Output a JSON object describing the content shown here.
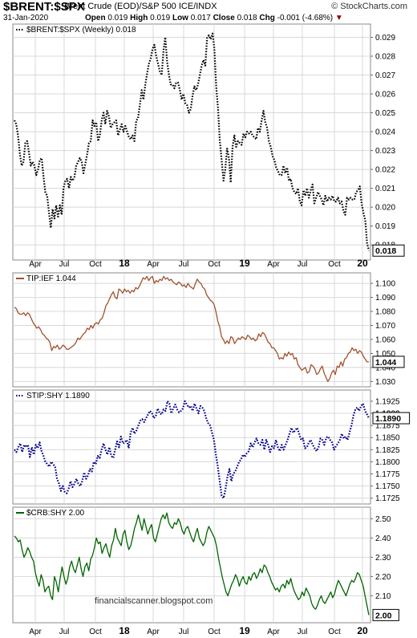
{
  "header": {
    "symbol": "$BRENT:$SPX",
    "description": "Brent Crude (EOD)/S&P 500  ICE/INDX",
    "date": "31-Jan-2020",
    "open_label": "Open",
    "open": "0.019",
    "high_label": "High",
    "high": "0.019",
    "low_label": "Low",
    "low": "0.017",
    "close_label": "Close",
    "close": "0.018",
    "chg_label": "Chg",
    "chg": "-0.001 (-4.68%)",
    "brand": "© StockCharts.com",
    "chg_color": "#8b0000"
  },
  "watermark": "financialscanner.blogspot.com",
  "x_axis": {
    "tick_labels": [
      "Apr",
      "Jul",
      "Oct",
      "18",
      "Apr",
      "Jul",
      "Oct",
      "19",
      "Apr",
      "Jul",
      "Oct",
      "20"
    ],
    "bold_labels": [
      "18",
      "19",
      "20"
    ]
  },
  "chart_data": [
    {
      "type": "line",
      "legend": "$BRENT:$SPX (Weekly) 0.018",
      "style": "dotted",
      "color": "#000000",
      "ylim": [
        0.0172,
        0.0297
      ],
      "yticks": [
        0.018,
        0.019,
        0.02,
        0.021,
        0.022,
        0.023,
        0.024,
        0.025,
        0.026,
        0.027,
        0.028,
        0.029
      ],
      "ytick_labels": [
        "0.018",
        "0.019",
        "0.020",
        "0.021",
        "0.022",
        "0.023",
        "0.024",
        "0.025",
        "0.026",
        "0.027",
        "0.028",
        "0.029"
      ],
      "last_value_label": "0.018",
      "values": [
        0.0246,
        0.0244,
        0.0238,
        0.0228,
        0.0222,
        0.0224,
        0.0234,
        0.0235,
        0.0229,
        0.0222,
        0.0224,
        0.0222,
        0.0217,
        0.022,
        0.0225,
        0.0226,
        0.0216,
        0.0208,
        0.0206,
        0.0197,
        0.0189,
        0.0199,
        0.0194,
        0.0201,
        0.0195,
        0.0201,
        0.0196,
        0.021,
        0.0214,
        0.0215,
        0.021,
        0.0216,
        0.0214,
        0.0216,
        0.0222,
        0.0224,
        0.0226,
        0.0224,
        0.0218,
        0.0223,
        0.0228,
        0.0234,
        0.0235,
        0.0246,
        0.0243,
        0.0245,
        0.0235,
        0.0238,
        0.0246,
        0.025,
        0.0244,
        0.0251,
        0.0248,
        0.0242,
        0.0244,
        0.0245,
        0.0246,
        0.0238,
        0.0241,
        0.0244,
        0.024,
        0.0243,
        0.024,
        0.0237,
        0.0236,
        0.0238,
        0.0235,
        0.0246,
        0.0247,
        0.0254,
        0.0262,
        0.0257,
        0.0265,
        0.0271,
        0.0276,
        0.0279,
        0.0284,
        0.0286,
        0.028,
        0.0276,
        0.0272,
        0.027,
        0.0283,
        0.029,
        0.0277,
        0.027,
        0.0265,
        0.0265,
        0.0263,
        0.0266,
        0.0266,
        0.0262,
        0.0257,
        0.026,
        0.0255,
        0.0254,
        0.025,
        0.0252,
        0.0259,
        0.0264,
        0.0262,
        0.0265,
        0.027,
        0.0275,
        0.0278,
        0.0275,
        0.029,
        0.0291,
        0.0289,
        0.0292,
        0.0284,
        0.0264,
        0.0252,
        0.0235,
        0.0225,
        0.0214,
        0.022,
        0.0231,
        0.0226,
        0.0213,
        0.0232,
        0.0238,
        0.0232,
        0.0235,
        0.0234,
        0.0233,
        0.0239,
        0.0237,
        0.024,
        0.0239,
        0.024,
        0.0238,
        0.0237,
        0.0236,
        0.0242,
        0.024,
        0.0246,
        0.0251,
        0.0245,
        0.0242,
        0.0235,
        0.0232,
        0.0227,
        0.0225,
        0.0221,
        0.0219,
        0.0217,
        0.0217,
        0.0222,
        0.0218,
        0.0221,
        0.0214,
        0.0215,
        0.021,
        0.0208,
        0.0207,
        0.021,
        0.0203,
        0.0201,
        0.0209,
        0.0206,
        0.021,
        0.0205,
        0.0209,
        0.0212,
        0.0202,
        0.0205,
        0.0208,
        0.0206,
        0.0204,
        0.0201,
        0.0206,
        0.0203,
        0.0205,
        0.0204,
        0.0206,
        0.0203,
        0.0203,
        0.0205,
        0.0202,
        0.0203,
        0.0198,
        0.0196,
        0.0205,
        0.0204,
        0.0205,
        0.0204,
        0.0204,
        0.0208,
        0.0209,
        0.0211,
        0.0202,
        0.0197,
        0.0193,
        0.0181,
        0.0177
      ],
      "x_positions": "weekly, Jan 2017 to Jan 2020"
    },
    {
      "type": "line",
      "legend": "TIP:IEF 1.044",
      "style": "solid",
      "color": "#a0522d",
      "ylim": [
        1.0262,
        1.1075
      ],
      "yticks": [
        1.03,
        1.04,
        1.05,
        1.06,
        1.07,
        1.08,
        1.09,
        1.1
      ],
      "ytick_labels": [
        "1.030",
        "1.040",
        "1.050",
        "1.060",
        "1.070",
        "1.080",
        "1.090",
        "1.100"
      ],
      "last_value_label": "1.044",
      "values": [
        1.083,
        1.082,
        1.079,
        1.078,
        1.078,
        1.079,
        1.077,
        1.079,
        1.078,
        1.075,
        1.072,
        1.07,
        1.068,
        1.069,
        1.067,
        1.064,
        1.063,
        1.061,
        1.06,
        1.058,
        1.052,
        1.055,
        1.054,
        1.056,
        1.053,
        1.054,
        1.056,
        1.055,
        1.053,
        1.053,
        1.054,
        1.055,
        1.056,
        1.058,
        1.061,
        1.06,
        1.062,
        1.064,
        1.065,
        1.068,
        1.067,
        1.07,
        1.068,
        1.071,
        1.072,
        1.071,
        1.074,
        1.075,
        1.079,
        1.084,
        1.086,
        1.089,
        1.092,
        1.094,
        1.09,
        1.089,
        1.096,
        1.095,
        1.093,
        1.096,
        1.094,
        1.095,
        1.093,
        1.095,
        1.094,
        1.097,
        1.096,
        1.098,
        1.101,
        1.104,
        1.103,
        1.105,
        1.102,
        1.104,
        1.105,
        1.1,
        1.102,
        1.101,
        1.103,
        1.102,
        1.105,
        1.103,
        1.104,
        1.102,
        1.103,
        1.101,
        1.1,
        1.099,
        1.101,
        1.1,
        1.098,
        1.099,
        1.097,
        1.1,
        1.098,
        1.097,
        1.096,
        1.1,
        1.103,
        1.101,
        1.1,
        1.097,
        1.096,
        1.092,
        1.09,
        1.088,
        1.087,
        1.085,
        1.08,
        1.073,
        1.069,
        1.062,
        1.06,
        1.057,
        1.059,
        1.057,
        1.062,
        1.061,
        1.057,
        1.059,
        1.061,
        1.06,
        1.062,
        1.061,
        1.06,
        1.063,
        1.062,
        1.06,
        1.061,
        1.059,
        1.06,
        1.064,
        1.062,
        1.065,
        1.064,
        1.061,
        1.058,
        1.057,
        1.054,
        1.054,
        1.052,
        1.05,
        1.046,
        1.047,
        1.046,
        1.05,
        1.048,
        1.051,
        1.049,
        1.05,
        1.046,
        1.047,
        1.042,
        1.04,
        1.038,
        1.039,
        1.04,
        1.036,
        1.037,
        1.042,
        1.041,
        1.039,
        1.035,
        1.036,
        1.039,
        1.041,
        1.036,
        1.033,
        1.03,
        1.032,
        1.036,
        1.038,
        1.035,
        1.041,
        1.04,
        1.044,
        1.041,
        1.046,
        1.047,
        1.05,
        1.051,
        1.054,
        1.052,
        1.053,
        1.05,
        1.052,
        1.051,
        1.048,
        1.046,
        1.044,
        1.044
      ]
    },
    {
      "type": "line",
      "legend": "STIP:SHY 1.1890",
      "style": "dotted",
      "color": "#00008b",
      "ylim": [
        1.1713,
        1.1948
      ],
      "yticks": [
        1.1725,
        1.175,
        1.1775,
        1.18,
        1.1825,
        1.185,
        1.1875,
        1.19,
        1.1925
      ],
      "ytick_labels": [
        "1.1725",
        "1.1750",
        "1.1775",
        "1.1800",
        "1.1825",
        "1.1850",
        "1.1875",
        "1.1900",
        "1.1925"
      ],
      "extra_label": "1.1900",
      "last_value_label": "1.1890",
      "values": [
        1.1825,
        1.182,
        1.183,
        1.1838,
        1.182,
        1.1835,
        1.183,
        1.1835,
        1.181,
        1.183,
        1.1815,
        1.1835,
        1.1828,
        1.184,
        1.1822,
        1.1812,
        1.18,
        1.1795,
        1.179,
        1.18,
        1.1795,
        1.179,
        1.1765,
        1.1755,
        1.174,
        1.175,
        1.1738,
        1.1735,
        1.1745,
        1.176,
        1.1748,
        1.1755,
        1.1765,
        1.1755,
        1.175,
        1.176,
        1.1778,
        1.1765,
        1.1772,
        1.1785,
        1.178,
        1.18,
        1.1795,
        1.1812,
        1.1808,
        1.1825,
        1.1838,
        1.1825,
        1.1815,
        1.183,
        1.1812,
        1.1808,
        1.1825,
        1.1842,
        1.183,
        1.1852,
        1.1838,
        1.184,
        1.1845,
        1.1828,
        1.186,
        1.187,
        1.1858,
        1.1865,
        1.1875,
        1.1885,
        1.1888,
        1.1882,
        1.189,
        1.1898,
        1.1905,
        1.19,
        1.189,
        1.1895,
        1.191,
        1.19,
        1.1898,
        1.1908,
        1.1905,
        1.1925,
        1.192,
        1.19,
        1.191,
        1.1918,
        1.1908,
        1.1902,
        1.1905,
        1.191,
        1.1925,
        1.1918,
        1.1912,
        1.1915,
        1.1905,
        1.192,
        1.191,
        1.19,
        1.1915,
        1.1912,
        1.1905,
        1.189,
        1.188,
        1.1875,
        1.186,
        1.1845,
        1.1815,
        1.179,
        1.176,
        1.173,
        1.1725,
        1.1745,
        1.177,
        1.1785,
        1.176,
        1.1775,
        1.178,
        1.179,
        1.18,
        1.1805,
        1.1815,
        1.181,
        1.1818,
        1.1822,
        1.1838,
        1.183,
        1.184,
        1.1848,
        1.1838,
        1.1835,
        1.1845,
        1.1825,
        1.1845,
        1.1835,
        1.182,
        1.1832,
        1.1828,
        1.1845,
        1.183,
        1.1822,
        1.1835,
        1.1825,
        1.1835,
        1.1845,
        1.1858,
        1.187,
        1.186,
        1.1865,
        1.187,
        1.1858,
        1.1845,
        1.1848,
        1.1828,
        1.183,
        1.184,
        1.1845,
        1.1835,
        1.1828,
        1.1822,
        1.183,
        1.1848,
        1.1845,
        1.1835,
        1.185,
        1.1852,
        1.1845,
        1.184,
        1.1825,
        1.1832,
        1.1838,
        1.1845,
        1.1858,
        1.1848,
        1.1852,
        1.1845,
        1.186,
        1.1875,
        1.1895,
        1.1908,
        1.1912,
        1.1905,
        1.1915,
        1.192,
        1.1905,
        1.1898,
        1.189
      ]
    },
    {
      "type": "line",
      "legend": "$CRB:SHY 2.00",
      "style": "solid",
      "color": "#006400",
      "ylim": [
        1.96,
        2.56
      ],
      "yticks": [
        2.1,
        2.2,
        2.3,
        2.4,
        2.5
      ],
      "ytick_labels": [
        "2.10",
        "2.20",
        "2.30",
        "2.40",
        "2.50"
      ],
      "last_value_label": "2.00",
      "values": [
        2.41,
        2.4,
        2.38,
        2.39,
        2.34,
        2.3,
        2.32,
        2.35,
        2.33,
        2.3,
        2.28,
        2.22,
        2.18,
        2.15,
        2.21,
        2.18,
        2.12,
        2.14,
        2.15,
        2.1,
        2.08,
        2.2,
        2.17,
        2.12,
        2.19,
        2.25,
        2.2,
        2.16,
        2.19,
        2.25,
        2.28,
        2.24,
        2.22,
        2.26,
        2.3,
        2.24,
        2.2,
        2.25,
        2.27,
        2.23,
        2.29,
        2.31,
        2.35,
        2.4,
        2.37,
        2.38,
        2.32,
        2.35,
        2.37,
        2.33,
        2.3,
        2.36,
        2.39,
        2.45,
        2.4,
        2.38,
        2.36,
        2.42,
        2.44,
        2.38,
        2.34,
        2.36,
        2.4,
        2.45,
        2.48,
        2.52,
        2.48,
        2.44,
        2.5,
        2.46,
        2.42,
        2.45,
        2.47,
        2.4,
        2.38,
        2.42,
        2.46,
        2.5,
        2.52,
        2.5,
        2.53,
        2.48,
        2.46,
        2.45,
        2.48,
        2.47,
        2.5,
        2.48,
        2.44,
        2.42,
        2.45,
        2.46,
        2.43,
        2.4,
        2.38,
        2.42,
        2.45,
        2.4,
        2.38,
        2.36,
        2.38,
        2.43,
        2.46,
        2.44,
        2.42,
        2.4,
        2.36,
        2.3,
        2.25,
        2.2,
        2.16,
        2.12,
        2.1,
        2.13,
        2.16,
        2.18,
        2.21,
        2.19,
        2.15,
        2.18,
        2.2,
        2.17,
        2.16,
        2.2,
        2.18,
        2.21,
        2.22,
        2.19,
        2.21,
        2.24,
        2.22,
        2.26,
        2.25,
        2.22,
        2.2,
        2.17,
        2.15,
        2.13,
        2.14,
        2.12,
        2.15,
        2.16,
        2.14,
        2.18,
        2.16,
        2.19,
        2.15,
        2.12,
        2.1,
        2.08,
        2.09,
        2.12,
        2.1,
        2.14,
        2.12,
        2.1,
        2.06,
        2.04,
        2.03,
        2.05,
        2.08,
        2.1,
        2.07,
        2.06,
        2.08,
        2.1,
        2.12,
        2.09,
        2.11,
        2.15,
        2.18,
        2.16,
        2.14,
        2.12,
        2.1,
        2.13,
        2.16,
        2.18,
        2.17,
        2.19,
        2.22,
        2.21,
        2.18,
        2.15,
        2.1,
        2.05,
        2.0
      ]
    }
  ]
}
